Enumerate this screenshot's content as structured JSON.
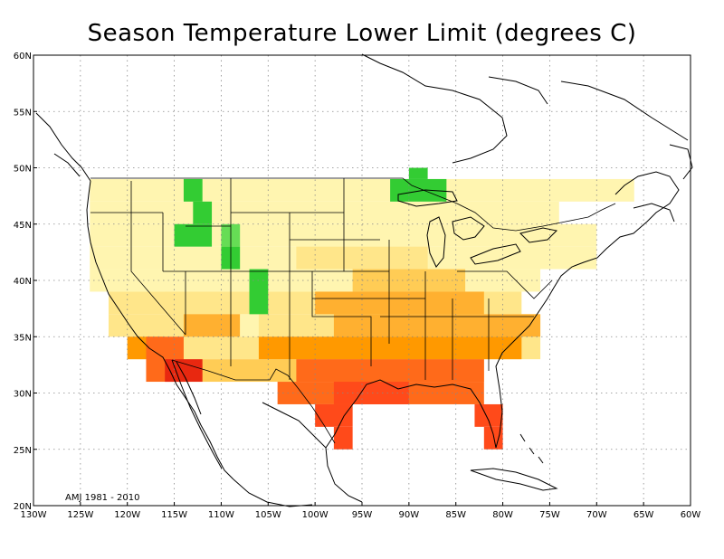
{
  "title": "Season Temperature Lower Limit (degrees C)",
  "season_label": "AMJ 1981 - 2010",
  "axes": {
    "lon_range": [
      -130,
      -60
    ],
    "lat_range": [
      20,
      60
    ],
    "x_ticks": [
      "130W",
      "125W",
      "120W",
      "115W",
      "110W",
      "105W",
      "100W",
      "95W",
      "90W",
      "85W",
      "80W",
      "75W",
      "70W",
      "65W",
      "60W"
    ],
    "y_ticks": [
      "20N",
      "25N",
      "30N",
      "35N",
      "40N",
      "45N",
      "50N",
      "55N",
      "60N"
    ],
    "grid": true
  },
  "colors": {
    "green": "#33cc33",
    "light_green": "#66dd55",
    "pale_yellow": "#fff5b0",
    "light_yellow": "#ffe68a",
    "yellow_orange": "#ffcc55",
    "light_orange": "#ffb030",
    "orange": "#ff9900",
    "dark_orange": "#ff6a1a",
    "red_orange": "#ff4a1a",
    "red": "#e82810"
  },
  "chart_data": {
    "type": "heatmap",
    "cell_size_deg": 2,
    "cells": [
      {
        "lon": [
          -124,
          -66
        ],
        "lat": [
          47,
          49
        ],
        "c": "pale_yellow"
      },
      {
        "lon": [
          -124,
          -74
        ],
        "lat": [
          45,
          47
        ],
        "c": "pale_yellow"
      },
      {
        "lon": [
          -124,
          -70
        ],
        "lat": [
          43,
          45
        ],
        "c": "pale_yellow"
      },
      {
        "lon": [
          -124,
          -70
        ],
        "lat": [
          41,
          43
        ],
        "c": "pale_yellow"
      },
      {
        "lon": [
          -124,
          -76
        ],
        "lat": [
          39,
          41
        ],
        "c": "pale_yellow"
      },
      {
        "lon": [
          -122,
          -78
        ],
        "lat": [
          37,
          39
        ],
        "c": "light_yellow"
      },
      {
        "lon": [
          -122,
          -76
        ],
        "lat": [
          35,
          37
        ],
        "c": "light_yellow"
      },
      {
        "lon": [
          -120,
          -76
        ],
        "lat": [
          33,
          35
        ],
        "c": "light_yellow"
      },
      {
        "lon": [
          -116,
          -82
        ],
        "lat": [
          31,
          33
        ],
        "c": "yellow_orange"
      },
      {
        "lon": [
          -104,
          -82
        ],
        "lat": [
          29,
          31
        ],
        "c": "dark_orange"
      },
      {
        "lon": [
          -100,
          -96
        ],
        "lat": [
          27,
          29
        ],
        "c": "red_orange"
      },
      {
        "lon": [
          -83,
          -80
        ],
        "lat": [
          27,
          29
        ],
        "c": "red_orange"
      },
      {
        "lon": [
          -98,
          -96
        ],
        "lat": [
          25,
          27
        ],
        "c": "red_orange"
      },
      {
        "lon": [
          -82,
          -80
        ],
        "lat": [
          25,
          27
        ],
        "c": "red_orange"
      },
      {
        "lon": [
          -116,
          -110
        ],
        "lat": [
          37,
          39
        ],
        "c": "light_yellow"
      },
      {
        "lon": [
          -102,
          -88
        ],
        "lat": [
          41,
          43
        ],
        "c": "light_yellow"
      },
      {
        "lon": [
          -96,
          -84
        ],
        "lat": [
          39,
          41
        ],
        "c": "yellow_orange"
      },
      {
        "lon": [
          -100,
          -82
        ],
        "lat": [
          37,
          39
        ],
        "c": "light_orange"
      },
      {
        "lon": [
          -98,
          -76
        ],
        "lat": [
          35,
          37
        ],
        "c": "light_orange"
      },
      {
        "lon": [
          -114,
          -108
        ],
        "lat": [
          35,
          37
        ],
        "c": "light_orange"
      },
      {
        "lon": [
          -106,
          -78
        ],
        "lat": [
          33,
          35
        ],
        "c": "orange"
      },
      {
        "lon": [
          -102,
          -82
        ],
        "lat": [
          31,
          33
        ],
        "c": "dark_orange"
      },
      {
        "lon": [
          -98,
          -90
        ],
        "lat": [
          29,
          31
        ],
        "c": "red_orange"
      },
      {
        "lon": [
          -120,
          -116
        ],
        "lat": [
          33,
          35
        ],
        "c": "orange"
      },
      {
        "lon": [
          -118,
          -114
        ],
        "lat": [
          31,
          35
        ],
        "c": "dark_orange"
      },
      {
        "lon": [
          -116,
          -112
        ],
        "lat": [
          31,
          33
        ],
        "c": "red"
      },
      {
        "lon": [
          -108,
          -106
        ],
        "lat": [
          35,
          37
        ],
        "c": "pale_yellow"
      },
      {
        "lon": [
          -114,
          -112
        ],
        "lat": [
          47,
          49
        ],
        "c": "green"
      },
      {
        "lon": [
          -113,
          -111
        ],
        "lat": [
          45,
          47
        ],
        "c": "green"
      },
      {
        "lon": [
          -115,
          -111
        ],
        "lat": [
          43,
          45
        ],
        "c": "green"
      },
      {
        "lon": [
          -110,
          -108
        ],
        "lat": [
          43,
          45
        ],
        "c": "light_green"
      },
      {
        "lon": [
          -110,
          -108
        ],
        "lat": [
          41,
          43
        ],
        "c": "green"
      },
      {
        "lon": [
          -107,
          -105
        ],
        "lat": [
          37,
          41
        ],
        "c": "green"
      },
      {
        "lon": [
          -92,
          -86
        ],
        "lat": [
          47,
          49
        ],
        "c": "green"
      },
      {
        "lon": [
          -90,
          -88
        ],
        "lat": [
          49,
          50
        ],
        "c": "green"
      }
    ]
  }
}
